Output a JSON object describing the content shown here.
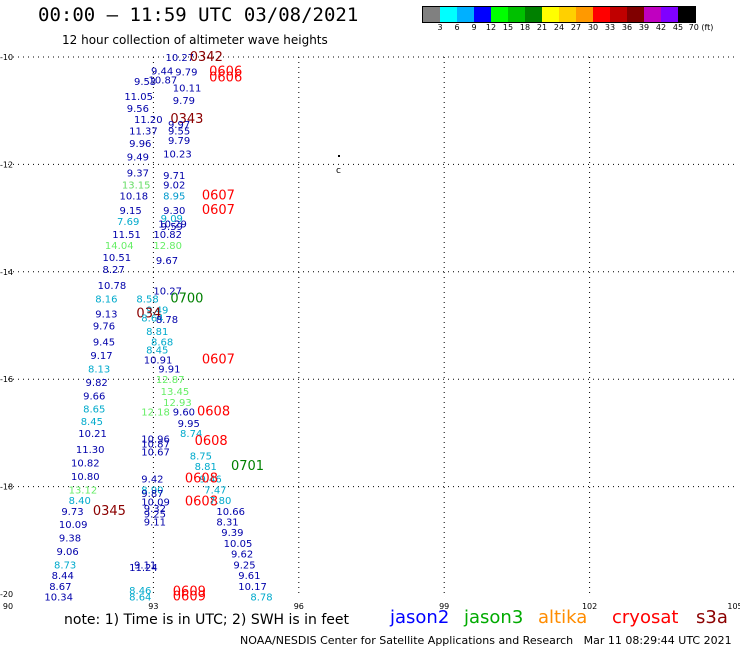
{
  "header": {
    "title": "00:00 – 11:59 UTC 03/08/2021",
    "subtitle": "12 hour collection of altimeter wave heights"
  },
  "colorbar": {
    "colors": [
      "#808080",
      "#00ffff",
      "#00b0ff",
      "#0000ff",
      "#00ff00",
      "#00c000",
      "#008000",
      "#ffff00",
      "#ffd000",
      "#ff9900",
      "#ff0000",
      "#c00000",
      "#800000",
      "#c000c0",
      "#8000ff",
      "#000000"
    ],
    "labels": [
      "3",
      "6",
      "9",
      "12",
      "15",
      "18",
      "21",
      "24",
      "27",
      "30",
      "33",
      "36",
      "39",
      "42",
      "45",
      "70 (ft)"
    ]
  },
  "map": {
    "lon_ticks": [
      "90",
      "93",
      "96",
      "99",
      "102",
      "105"
    ],
    "lat_ticks": [
      "-10",
      "-12",
      "-14",
      "-16",
      "-18",
      "-20"
    ],
    "lon_range": [
      90,
      105
    ],
    "lat_range": [
      -10,
      -20
    ]
  },
  "observations": [
    {
      "text": "10.27",
      "lon": 93.25,
      "lat": -10.0,
      "color": "#0000aa"
    },
    {
      "text": "0342",
      "lon": 93.75,
      "lat": -10.0,
      "color": "#8b0000",
      "big": true
    },
    {
      "text": "9.44",
      "lon": 92.95,
      "lat": -10.25,
      "color": "#0000aa"
    },
    {
      "text": "9.79",
      "lon": 93.45,
      "lat": -10.27,
      "color": "#0000aa"
    },
    {
      "text": "0606",
      "lon": 94.15,
      "lat": -10.27,
      "color": "#ff0000",
      "big": true
    },
    {
      "text": "9.53",
      "lon": 92.6,
      "lat": -10.45,
      "color": "#0000aa"
    },
    {
      "text": "10.87",
      "lon": 92.9,
      "lat": -10.42,
      "color": "#0000aa"
    },
    {
      "text": "0606",
      "lon": 94.15,
      "lat": -10.38,
      "color": "#ff0000",
      "big": true
    },
    {
      "text": "10.11",
      "lon": 93.4,
      "lat": -10.57,
      "color": "#0000aa"
    },
    {
      "text": "11.05",
      "lon": 92.4,
      "lat": -10.73,
      "color": "#0000aa"
    },
    {
      "text": "9.79",
      "lon": 93.4,
      "lat": -10.8,
      "color": "#0000aa"
    },
    {
      "text": "9.56",
      "lon": 92.45,
      "lat": -10.95,
      "color": "#0000aa"
    },
    {
      "text": "11.20",
      "lon": 92.6,
      "lat": -11.15,
      "color": "#0000aa"
    },
    {
      "text": "0343",
      "lon": 93.35,
      "lat": -11.15,
      "color": "#8b0000",
      "big": true
    },
    {
      "text": "9.97",
      "lon": 93.3,
      "lat": -11.25,
      "color": "#0000aa"
    },
    {
      "text": "11.37",
      "lon": 92.5,
      "lat": -11.37,
      "color": "#0000aa"
    },
    {
      "text": "9.55",
      "lon": 93.3,
      "lat": -11.37,
      "color": "#0000aa"
    },
    {
      "text": "9.96",
      "lon": 92.5,
      "lat": -11.6,
      "color": "#0000aa"
    },
    {
      "text": "9.79",
      "lon": 93.3,
      "lat": -11.55,
      "color": "#0000aa"
    },
    {
      "text": "9.49",
      "lon": 92.45,
      "lat": -11.85,
      "color": "#0000aa"
    },
    {
      "text": "10.23",
      "lon": 93.2,
      "lat": -11.8,
      "color": "#0000aa"
    },
    {
      "text": "9.37",
      "lon": 92.45,
      "lat": -12.15,
      "color": "#0000aa"
    },
    {
      "text": "9.71",
      "lon": 93.2,
      "lat": -12.2,
      "color": "#0000aa"
    },
    {
      "text": "13.15",
      "lon": 92.35,
      "lat": -12.37,
      "color": "#66dd66"
    },
    {
      "text": "9.02",
      "lon": 93.2,
      "lat": -12.37,
      "color": "#0000aa"
    },
    {
      "text": "10.18",
      "lon": 92.3,
      "lat": -12.58,
      "color": "#0000aa"
    },
    {
      "text": "8.95",
      "lon": 93.2,
      "lat": -12.58,
      "color": "#0099cc"
    },
    {
      "text": "0607",
      "lon": 94.0,
      "lat": -12.58,
      "color": "#ff0000",
      "big": true
    },
    {
      "text": "9.15",
      "lon": 92.3,
      "lat": -12.85,
      "color": "#0000aa"
    },
    {
      "text": "9.30",
      "lon": 93.2,
      "lat": -12.85,
      "color": "#0000aa"
    },
    {
      "text": "0607",
      "lon": 94.0,
      "lat": -12.85,
      "color": "#ff0000",
      "big": true
    },
    {
      "text": "7.69",
      "lon": 92.25,
      "lat": -13.05,
      "color": "#00aacc"
    },
    {
      "text": "9.09",
      "lon": 93.15,
      "lat": -13.0,
      "color": "#00aacc"
    },
    {
      "text": "10.29",
      "lon": 93.1,
      "lat": -13.1,
      "color": "#0000aa"
    },
    {
      "text": "9.59",
      "lon": 93.15,
      "lat": -13.15,
      "color": "#0000aa"
    },
    {
      "text": "11.51",
      "lon": 92.15,
      "lat": -13.3,
      "color": "#0000aa"
    },
    {
      "text": "10.82",
      "lon": 93.0,
      "lat": -13.3,
      "color": "#0000aa"
    },
    {
      "text": "14.04",
      "lon": 92.0,
      "lat": -13.5,
      "color": "#66ee66"
    },
    {
      "text": "12.80",
      "lon": 93.0,
      "lat": -13.5,
      "color": "#66ee66"
    },
    {
      "text": "10.51",
      "lon": 91.95,
      "lat": -13.72,
      "color": "#0000aa"
    },
    {
      "text": "9.67",
      "lon": 93.05,
      "lat": -13.78,
      "color": "#0000aa"
    },
    {
      "text": "8.27",
      "lon": 91.95,
      "lat": -13.95,
      "color": "#0000aa"
    },
    {
      "text": "10.78",
      "lon": 91.85,
      "lat": -14.25,
      "color": "#0000aa"
    },
    {
      "text": "10.27",
      "lon": 93.0,
      "lat": -14.35,
      "color": "#0000aa"
    },
    {
      "text": "8.16",
      "lon": 91.8,
      "lat": -14.5,
      "color": "#00aacc"
    },
    {
      "text": "8.58",
      "lon": 92.65,
      "lat": -14.5,
      "color": "#00aacc"
    },
    {
      "text": "0700",
      "lon": 93.35,
      "lat": -14.5,
      "color": "#008000",
      "big": true
    },
    {
      "text": "9.49",
      "lon": 92.85,
      "lat": -14.7,
      "color": "#00aacc"
    },
    {
      "text": "9.13",
      "lon": 91.8,
      "lat": -14.78,
      "color": "#0000aa"
    },
    {
      "text": "034",
      "lon": 92.65,
      "lat": -14.78,
      "color": "#8b0000",
      "big": true
    },
    {
      "text": "8.64",
      "lon": 92.75,
      "lat": -14.85,
      "color": "#00aacc"
    },
    {
      "text": "8.78",
      "lon": 93.05,
      "lat": -14.88,
      "color": "#0000aa"
    },
    {
      "text": "9.76",
      "lon": 91.75,
      "lat": -15.0,
      "color": "#0000aa"
    },
    {
      "text": "8.81",
      "lon": 92.85,
      "lat": -15.1,
      "color": "#00aacc"
    },
    {
      "text": "9.45",
      "lon": 91.75,
      "lat": -15.3,
      "color": "#0000aa"
    },
    {
      "text": "8.68",
      "lon": 92.95,
      "lat": -15.3,
      "color": "#00aacc"
    },
    {
      "text": "9.17",
      "lon": 91.7,
      "lat": -15.55,
      "color": "#0000aa"
    },
    {
      "text": "8.45",
      "lon": 92.85,
      "lat": -15.45,
      "color": "#00aacc"
    },
    {
      "text": "10.91",
      "lon": 92.8,
      "lat": -15.63,
      "color": "#0000aa"
    },
    {
      "text": "0607",
      "lon": 94.0,
      "lat": -15.63,
      "color": "#ff0000",
      "big": true
    },
    {
      "text": "8.13",
      "lon": 91.65,
      "lat": -15.8,
      "color": "#00aacc"
    },
    {
      "text": "9.91",
      "lon": 93.1,
      "lat": -15.8,
      "color": "#0000aa"
    },
    {
      "text": "9.82",
      "lon": 91.6,
      "lat": -16.05,
      "color": "#0000aa"
    },
    {
      "text": "12.87",
      "lon": 93.05,
      "lat": -16.0,
      "color": "#66ee66"
    },
    {
      "text": "13.45",
      "lon": 93.15,
      "lat": -16.22,
      "color": "#66ee66"
    },
    {
      "text": "9.66",
      "lon": 91.55,
      "lat": -16.3,
      "color": "#0000aa"
    },
    {
      "text": "12.93",
      "lon": 93.2,
      "lat": -16.42,
      "color": "#66ee66"
    },
    {
      "text": "8.65",
      "lon": 91.55,
      "lat": -16.55,
      "color": "#00aacc"
    },
    {
      "text": "12.18",
      "lon": 92.75,
      "lat": -16.6,
      "color": "#66ee66"
    },
    {
      "text": "9.60",
      "lon": 93.4,
      "lat": -16.6,
      "color": "#0000aa"
    },
    {
      "text": "0608",
      "lon": 93.9,
      "lat": -16.6,
      "color": "#ff0000",
      "big": true
    },
    {
      "text": "8.45",
      "lon": 91.5,
      "lat": -16.78,
      "color": "#00aacc"
    },
    {
      "text": "9.95",
      "lon": 93.5,
      "lat": -16.82,
      "color": "#0000aa"
    },
    {
      "text": "10.21",
      "lon": 91.45,
      "lat": -17.0,
      "color": "#0000aa"
    },
    {
      "text": "8.74",
      "lon": 93.55,
      "lat": -17.0,
      "color": "#00aacc"
    },
    {
      "text": "10.96",
      "lon": 92.75,
      "lat": -17.1,
      "color": "#0000aa"
    },
    {
      "text": "10.87",
      "lon": 92.75,
      "lat": -17.2,
      "color": "#0000aa"
    },
    {
      "text": "0608",
      "lon": 93.85,
      "lat": -17.15,
      "color": "#ff0000",
      "big": true
    },
    {
      "text": "11.30",
      "lon": 91.4,
      "lat": -17.3,
      "color": "#0000aa"
    },
    {
      "text": "10.67",
      "lon": 92.75,
      "lat": -17.35,
      "color": "#0000aa"
    },
    {
      "text": "8.75",
      "lon": 93.75,
      "lat": -17.42,
      "color": "#00aacc"
    },
    {
      "text": "10.82",
      "lon": 91.3,
      "lat": -17.55,
      "color": "#0000aa"
    },
    {
      "text": "8.81",
      "lon": 93.85,
      "lat": -17.62,
      "color": "#00aacc"
    },
    {
      "text": "0701",
      "lon": 94.6,
      "lat": -17.62,
      "color": "#008000",
      "big": true
    },
    {
      "text": "10.80",
      "lon": 91.3,
      "lat": -17.8,
      "color": "#0000aa"
    },
    {
      "text": "9.42",
      "lon": 92.75,
      "lat": -17.85,
      "color": "#0000aa"
    },
    {
      "text": "9.46",
      "lon": 93.95,
      "lat": -17.85,
      "color": "#00aacc"
    },
    {
      "text": "0608",
      "lon": 93.65,
      "lat": -17.85,
      "color": "#ff0000",
      "big": true
    },
    {
      "text": "13.12",
      "lon": 91.25,
      "lat": -18.05,
      "color": "#66ee66"
    },
    {
      "text": "8.90",
      "lon": 92.75,
      "lat": -18.05,
      "color": "#00aacc"
    },
    {
      "text": "9.87",
      "lon": 92.75,
      "lat": -18.12,
      "color": "#0000aa"
    },
    {
      "text": "7.47",
      "lon": 94.05,
      "lat": -18.05,
      "color": "#00aacc"
    },
    {
      "text": "8.40",
      "lon": 91.25,
      "lat": -18.25,
      "color": "#00aacc"
    },
    {
      "text": "10.09",
      "lon": 92.75,
      "lat": -18.28,
      "color": "#0000aa"
    },
    {
      "text": "0608",
      "lon": 93.65,
      "lat": -18.28,
      "color": "#ff0000",
      "big": true
    },
    {
      "text": "7.80",
      "lon": 94.15,
      "lat": -18.25,
      "color": "#00aacc"
    },
    {
      "text": "9.73",
      "lon": 91.1,
      "lat": -18.45,
      "color": "#0000aa"
    },
    {
      "text": "0345",
      "lon": 91.75,
      "lat": -18.45,
      "color": "#8b0000",
      "big": true
    },
    {
      "text": "9.32",
      "lon": 92.8,
      "lat": -18.4,
      "color": "#0000aa"
    },
    {
      "text": "9.25",
      "lon": 92.8,
      "lat": -18.5,
      "color": "#0000aa"
    },
    {
      "text": "10.66",
      "lon": 94.3,
      "lat": -18.45,
      "color": "#0000aa"
    },
    {
      "text": "10.09",
      "lon": 91.05,
      "lat": -18.7,
      "color": "#0000aa"
    },
    {
      "text": "9.11",
      "lon": 92.8,
      "lat": -18.65,
      "color": "#0000aa"
    },
    {
      "text": "8.31",
      "lon": 94.3,
      "lat": -18.65,
      "color": "#0000aa"
    },
    {
      "text": "9.38",
      "lon": 91.05,
      "lat": -18.95,
      "color": "#0000aa"
    },
    {
      "text": "9.39",
      "lon": 94.4,
      "lat": -18.85,
      "color": "#0000aa"
    },
    {
      "text": "9.06",
      "lon": 91.0,
      "lat": -19.2,
      "color": "#0000aa"
    },
    {
      "text": "10.05",
      "lon": 94.45,
      "lat": -19.05,
      "color": "#0000aa"
    },
    {
      "text": "9.62",
      "lon": 94.6,
      "lat": -19.25,
      "color": "#0000aa"
    },
    {
      "text": "8.73",
      "lon": 90.95,
      "lat": -19.45,
      "color": "#00aacc"
    },
    {
      "text": "11.24",
      "lon": 92.5,
      "lat": -19.5,
      "color": "#0000aa"
    },
    {
      "text": "9.11",
      "lon": 92.6,
      "lat": -19.45,
      "color": "#0000aa"
    },
    {
      "text": "9.25",
      "lon": 94.65,
      "lat": -19.45,
      "color": "#0000aa"
    },
    {
      "text": "8.44",
      "lon": 90.9,
      "lat": -19.65,
      "color": "#0000aa"
    },
    {
      "text": "9.61",
      "lon": 94.75,
      "lat": -19.65,
      "color": "#0000aa"
    },
    {
      "text": "8.67",
      "lon": 90.85,
      "lat": -19.85,
      "color": "#0000aa"
    },
    {
      "text": "10.17",
      "lon": 94.75,
      "lat": -19.85,
      "color": "#0000aa"
    },
    {
      "text": "8.46",
      "lon": 92.5,
      "lat": -19.93,
      "color": "#00aacc"
    },
    {
      "text": "0609",
      "lon": 93.4,
      "lat": -19.95,
      "color": "#ff0000",
      "big": true
    },
    {
      "text": "10.34",
      "lon": 90.75,
      "lat": -20.05,
      "color": "#0000aa"
    },
    {
      "text": "8.64",
      "lon": 92.5,
      "lat": -20.05,
      "color": "#00aacc"
    },
    {
      "text": "0609",
      "lon": 93.4,
      "lat": -20.05,
      "color": "#ff0000",
      "big": true
    },
    {
      "text": "8.78",
      "lon": 95.0,
      "lat": -20.05,
      "color": "#00aacc"
    }
  ],
  "footer": {
    "note": "note: 1) Time is in UTC; 2) SWH is in feet",
    "legend": [
      {
        "label": "jason2",
        "color": "#0000ff"
      },
      {
        "label": "jason3",
        "color": "#00aa00"
      },
      {
        "label": "altika",
        "color": "#ff8c00"
      },
      {
        "label": "cryosat",
        "color": "#ff0000"
      },
      {
        "label": "s3a",
        "color": "#8b0000"
      }
    ],
    "credit": "NOAA/NESDIS Center for Satellite Applications and Research   Mar 11 08:29:44 UTC 2021"
  }
}
